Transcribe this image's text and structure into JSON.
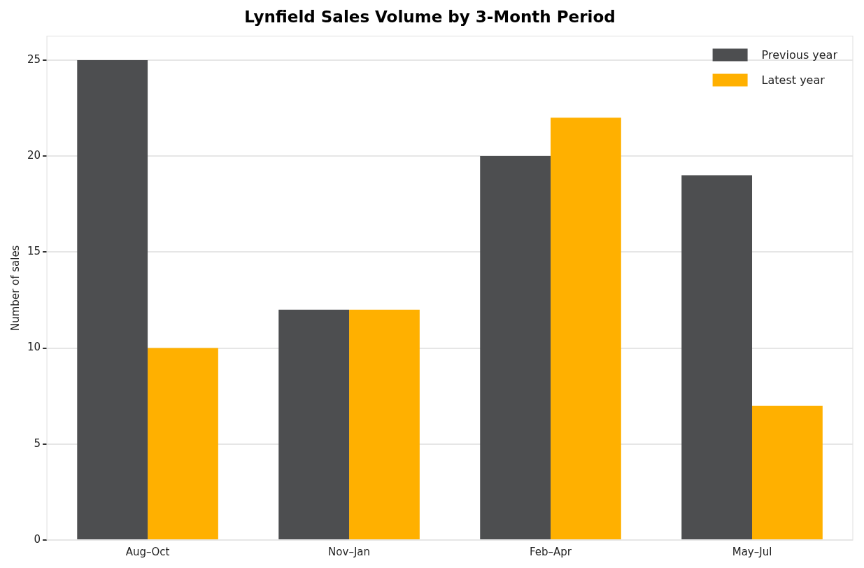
{
  "chart_data": {
    "type": "bar",
    "title": "Lynfield Sales Volume by 3-Month Period",
    "ylabel": "Number of sales",
    "categories": [
      "Aug–Oct",
      "Nov–Jan",
      "Feb–Apr",
      "May–Jul"
    ],
    "series": [
      {
        "name": "Previous year",
        "color": "#4d4e50",
        "values": [
          25,
          12,
          20,
          19
        ]
      },
      {
        "name": "Latest year",
        "color": "#ffb000",
        "values": [
          10,
          12,
          22,
          7
        ]
      }
    ],
    "ylim": [
      0,
      26.25
    ],
    "yticks": [
      0,
      5,
      10,
      15,
      20,
      25
    ],
    "grid": "y",
    "legend": "top right"
  }
}
